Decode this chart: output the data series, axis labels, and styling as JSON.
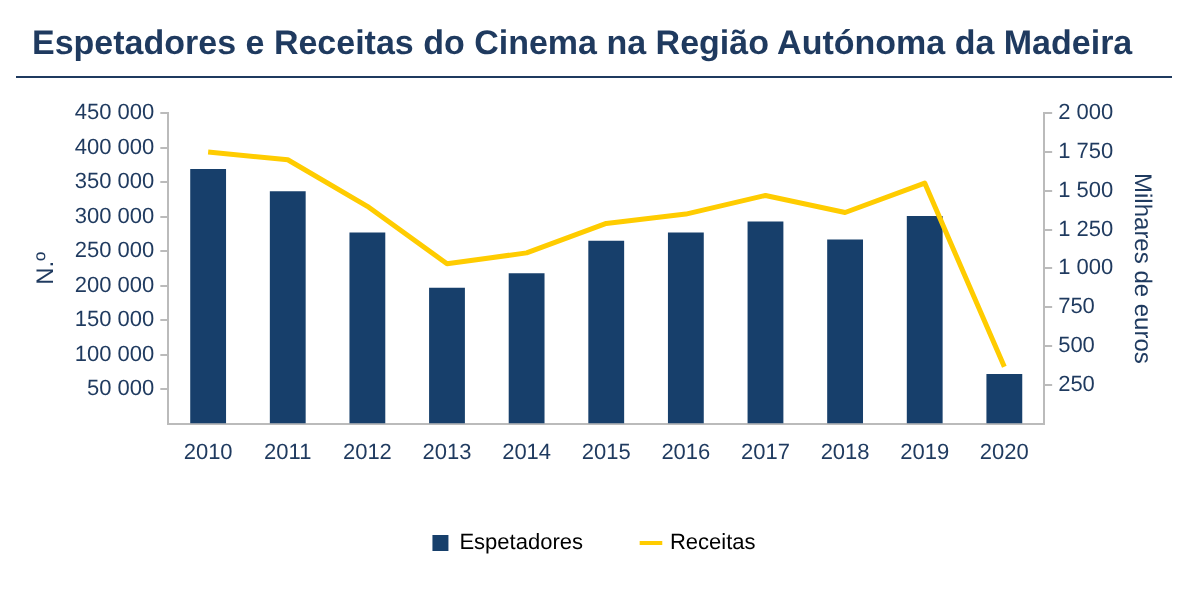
{
  "chart_data": {
    "type": "bar",
    "title": "Espetadores e Receitas do Cinema na Região Autónoma da Madeira",
    "categories": [
      "2010",
      "2011",
      "2012",
      "2013",
      "2014",
      "2015",
      "2016",
      "2017",
      "2018",
      "2019",
      "2020"
    ],
    "series": [
      {
        "name": "Espetadores",
        "color": "#173f6b",
        "values": [
          369000,
          337000,
          277000,
          197000,
          218000,
          265000,
          277000,
          293000,
          267000,
          301000,
          72000
        ]
      },
      {
        "name": "Receitas",
        "type": "line",
        "axis": "y2",
        "color": "#ffcc00",
        "values": [
          1750,
          1700,
          1400,
          1030,
          1100,
          1290,
          1350,
          1470,
          1360,
          1550,
          366
        ]
      }
    ],
    "ylabel": "N.º",
    "y2label": "Milhares de euros",
    "ylim": [
      0,
      450000
    ],
    "yticks": [
      {
        "value": 50000,
        "label": "50 000"
      },
      {
        "value": 100000,
        "label": "100 000"
      },
      {
        "value": 150000,
        "label": "150 000"
      },
      {
        "value": 200000,
        "label": "200 000"
      },
      {
        "value": 250000,
        "label": "250 000"
      },
      {
        "value": 300000,
        "label": "300 000"
      },
      {
        "value": 350000,
        "label": "350 000"
      },
      {
        "value": 400000,
        "label": "400 000"
      },
      {
        "value": 450000,
        "label": "450 000"
      }
    ],
    "y2lim": [
      0,
      2000
    ],
    "y2ticks": [
      250,
      500,
      750,
      {
        "value": 1000,
        "label": "1 000"
      },
      {
        "value": 1250,
        "label": "1 250"
      },
      {
        "value": 1500,
        "label": "1 500"
      },
      {
        "value": 1750,
        "label": "1 750"
      },
      {
        "value": 2000,
        "label": "2 000"
      }
    ],
    "legend": "bottom",
    "grid": false,
    "marker": "none"
  }
}
